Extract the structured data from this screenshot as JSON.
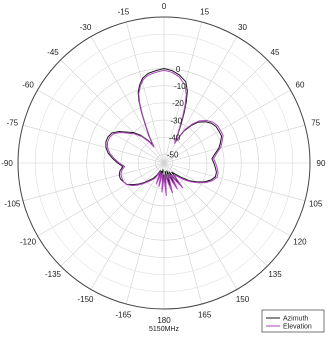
{
  "chart_data": {
    "type": "line",
    "projection": "polar",
    "subtitle": "5150MHz",
    "theta_direction": "clockwise",
    "theta_zero": "top",
    "angle_ticks": [
      {
        "angle": 0,
        "label": "0"
      },
      {
        "angle": 15,
        "label": "15"
      },
      {
        "angle": 30,
        "label": "30"
      },
      {
        "angle": 45,
        "label": "45"
      },
      {
        "angle": 60,
        "label": "60"
      },
      {
        "angle": 75,
        "label": "75"
      },
      {
        "angle": 90,
        "label": "90"
      },
      {
        "angle": 105,
        "label": "105"
      },
      {
        "angle": 120,
        "label": "120"
      },
      {
        "angle": 135,
        "label": "135"
      },
      {
        "angle": 150,
        "label": "150"
      },
      {
        "angle": 165,
        "label": "165"
      },
      {
        "angle": 180,
        "label": "180"
      },
      {
        "angle": 195,
        "label": "-165"
      },
      {
        "angle": 210,
        "label": "-150"
      },
      {
        "angle": 225,
        "label": "-135"
      },
      {
        "angle": 240,
        "label": "-120"
      },
      {
        "angle": 255,
        "label": "-105"
      },
      {
        "angle": 270,
        "label": "-90"
      },
      {
        "angle": 285,
        "label": "-75"
      },
      {
        "angle": 300,
        "label": "-60"
      },
      {
        "angle": 315,
        "label": "-45"
      },
      {
        "angle": 330,
        "label": "-30"
      },
      {
        "angle": 345,
        "label": "-15"
      }
    ],
    "r_ticks": [
      {
        "value": -50,
        "label": "-50"
      },
      {
        "value": -40,
        "label": "-40"
      },
      {
        "value": -30,
        "label": "-30"
      },
      {
        "value": -20,
        "label": "-20"
      },
      {
        "value": -10,
        "label": "-10"
      },
      {
        "value": 0,
        "label": "0"
      }
    ],
    "r_min": -55,
    "r_max": 30,
    "grid": true,
    "legend_position": "bottom-right",
    "series": [
      {
        "name": "Azimuth",
        "color": "#1a1a1a",
        "points": [
          [
            0,
            0
          ],
          [
            5,
            -1
          ],
          [
            10,
            -3
          ],
          [
            15,
            -6
          ],
          [
            18,
            -11
          ],
          [
            20,
            -17
          ],
          [
            22,
            -24
          ],
          [
            24,
            -31
          ],
          [
            26,
            -37
          ],
          [
            28,
            -41
          ],
          [
            32,
            -33
          ],
          [
            36,
            -28
          ],
          [
            40,
            -24
          ],
          [
            45,
            -21
          ],
          [
            50,
            -19
          ],
          [
            55,
            -18
          ],
          [
            60,
            -18
          ],
          [
            65,
            -18
          ],
          [
            70,
            -20
          ],
          [
            75,
            -22
          ],
          [
            80,
            -25
          ],
          [
            85,
            -27
          ],
          [
            90,
            -26
          ],
          [
            95,
            -25
          ],
          [
            100,
            -24
          ],
          [
            105,
            -24
          ],
          [
            110,
            -26
          ],
          [
            115,
            -29
          ],
          [
            120,
            -33
          ],
          [
            125,
            -37
          ],
          [
            130,
            -42
          ],
          [
            135,
            -46
          ],
          [
            140,
            -48
          ],
          [
            143,
            -39
          ],
          [
            146,
            -44
          ],
          [
            150,
            -49
          ],
          [
            153,
            -40
          ],
          [
            156,
            -46
          ],
          [
            160,
            -50
          ],
          [
            164,
            -41
          ],
          [
            168,
            -46
          ],
          [
            172,
            -50
          ],
          [
            176,
            -38
          ],
          [
            180,
            -48
          ],
          [
            184,
            -40
          ],
          [
            188,
            -51
          ],
          [
            192,
            -43
          ],
          [
            196,
            -50
          ],
          [
            200,
            -44
          ],
          [
            205,
            -50
          ],
          [
            210,
            -47
          ],
          [
            215,
            -44
          ],
          [
            220,
            -42
          ],
          [
            225,
            -39
          ],
          [
            230,
            -36
          ],
          [
            235,
            -33
          ],
          [
            240,
            -30
          ],
          [
            245,
            -29
          ],
          [
            250,
            -28
          ],
          [
            255,
            -28
          ],
          [
            260,
            -29
          ],
          [
            265,
            -31
          ],
          [
            270,
            -28
          ],
          [
            275,
            -25
          ],
          [
            280,
            -22
          ],
          [
            285,
            -20
          ],
          [
            290,
            -19
          ],
          [
            295,
            -19
          ],
          [
            300,
            -20
          ],
          [
            305,
            -23
          ],
          [
            310,
            -27
          ],
          [
            315,
            -30
          ],
          [
            320,
            -34
          ],
          [
            325,
            -39
          ],
          [
            328,
            -43
          ],
          [
            331,
            -37
          ],
          [
            334,
            -30
          ],
          [
            336,
            -23
          ],
          [
            338,
            -16
          ],
          [
            340,
            -11
          ],
          [
            343,
            -7
          ],
          [
            346,
            -4
          ],
          [
            350,
            -2
          ],
          [
            355,
            -1
          ],
          [
            360,
            0
          ]
        ]
      },
      {
        "name": "Elevation",
        "color": "#b040c0",
        "points": [
          [
            0,
            -1
          ],
          [
            5,
            -2
          ],
          [
            10,
            -4
          ],
          [
            15,
            -8
          ],
          [
            18,
            -13
          ],
          [
            20,
            -19
          ],
          [
            22,
            -26
          ],
          [
            24,
            -33
          ],
          [
            26,
            -38
          ],
          [
            28,
            -42
          ],
          [
            32,
            -32
          ],
          [
            36,
            -27
          ],
          [
            40,
            -23
          ],
          [
            45,
            -20
          ],
          [
            50,
            -18
          ],
          [
            55,
            -17
          ],
          [
            60,
            -17
          ],
          [
            65,
            -17
          ],
          [
            70,
            -19
          ],
          [
            75,
            -21
          ],
          [
            80,
            -24
          ],
          [
            85,
            -26
          ],
          [
            90,
            -25
          ],
          [
            95,
            -24
          ],
          [
            100,
            -23
          ],
          [
            105,
            -23
          ],
          [
            110,
            -25
          ],
          [
            115,
            -28
          ],
          [
            120,
            -32
          ],
          [
            125,
            -36
          ],
          [
            130,
            -40
          ],
          [
            135,
            -44
          ],
          [
            140,
            -46
          ],
          [
            143,
            -37
          ],
          [
            146,
            -42
          ],
          [
            150,
            -47
          ],
          [
            153,
            -38
          ],
          [
            156,
            -43
          ],
          [
            160,
            -48
          ],
          [
            164,
            -37
          ],
          [
            168,
            -43
          ],
          [
            172,
            -48
          ],
          [
            176,
            -36
          ],
          [
            180,
            -47
          ],
          [
            184,
            -38
          ],
          [
            188,
            -49
          ],
          [
            192,
            -41
          ],
          [
            196,
            -49
          ],
          [
            200,
            -42
          ],
          [
            205,
            -49
          ],
          [
            210,
            -45
          ],
          [
            215,
            -43
          ],
          [
            220,
            -41
          ],
          [
            225,
            -38
          ],
          [
            230,
            -35
          ],
          [
            235,
            -32
          ],
          [
            240,
            -30
          ],
          [
            245,
            -29
          ],
          [
            250,
            -29
          ],
          [
            255,
            -29
          ],
          [
            260,
            -30
          ],
          [
            265,
            -32
          ],
          [
            270,
            -29
          ],
          [
            275,
            -26
          ],
          [
            280,
            -23
          ],
          [
            285,
            -21
          ],
          [
            290,
            -20
          ],
          [
            295,
            -20
          ],
          [
            300,
            -21
          ],
          [
            305,
            -24
          ],
          [
            310,
            -28
          ],
          [
            315,
            -31
          ],
          [
            320,
            -35
          ],
          [
            325,
            -40
          ],
          [
            328,
            -44
          ],
          [
            331,
            -38
          ],
          [
            334,
            -31
          ],
          [
            336,
            -24
          ],
          [
            338,
            -17
          ],
          [
            340,
            -12
          ],
          [
            343,
            -8
          ],
          [
            346,
            -5
          ],
          [
            350,
            -3
          ],
          [
            355,
            -2
          ],
          [
            360,
            -1
          ]
        ]
      }
    ]
  }
}
